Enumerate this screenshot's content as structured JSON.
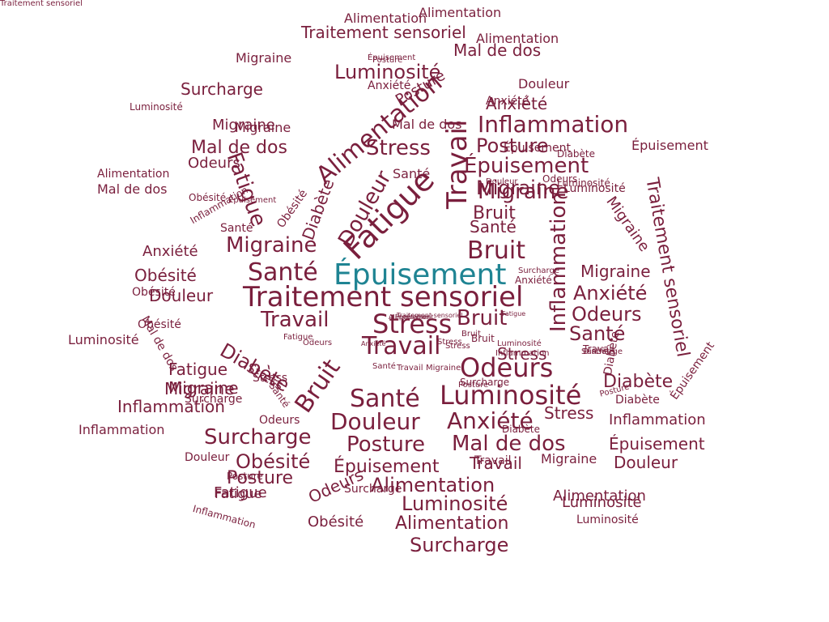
{
  "colors": {
    "word": "#7a1f3d",
    "highlight": "#1f8493",
    "background": "#ffffff"
  },
  "words": [
    "Épuisement",
    "Traitement sensoriel",
    "Travail",
    "Fatigue",
    "Stress",
    "Travail",
    "Alimentation",
    "Odeurs",
    "Luminosité",
    "Migraine",
    "Inflammation",
    "Santé",
    "Douleur",
    "Bruit",
    "Posture",
    "Bruit",
    "Santé",
    "Bruit",
    "Diabète",
    "Douleur",
    "Anxiété",
    "Stress",
    "Épuisement",
    "Luminosité",
    "Fatigue",
    "Inflammation",
    "Migraine",
    "Surcharge",
    "Traitement sensoriel",
    "Mal de dos",
    "Alimentation",
    "Surcharge",
    "Obésité",
    "Santé",
    "Migraine",
    "Odeurs",
    "Anxiété",
    "Posture",
    "Épuisement",
    "Posture",
    "Alimentation",
    "Travail",
    "Luminosité",
    "Bruit",
    "Diabète",
    "Mal de dos",
    "Traitement sensoriel",
    "Épuisement",
    "Diabète",
    "Stress",
    "Migraine",
    "Travail",
    "Santé",
    "Douleur",
    "Obésité",
    "Anxiété",
    "Luminosité",
    "Stress",
    "Migraine",
    "Alimentation",
    "Odeurs",
    "Surcharge",
    "Douleur",
    "Migraine",
    "Migraine",
    "Odeurs",
    "Mal de dos",
    "Anxiété",
    "Surcharge",
    "Posture",
    "Migraine",
    "Inflammation",
    "Alimentation",
    "Mal de dos",
    "Obésité",
    "Luminosité",
    "Surcharge",
    "Fatigue",
    "Migraine",
    "Inflammation",
    "Fatigue",
    "Stress",
    "Diabète",
    "Luminosité",
    "Épuisement",
    "Inflammation",
    "Alimentation",
    "Obésité",
    "Épuisement",
    "Luminosité",
    "Travail",
    "Douleur",
    "Migraine",
    "Douleur",
    "Obésité",
    "Stress",
    "Fatigue",
    "Posture",
    "Odeurs",
    "Santé",
    "Santé",
    "Diabète",
    "Mal de dos",
    "Anxiété",
    "Inflammation",
    "Alimentation",
    "Épuisement",
    "Migraine",
    "Luminosité",
    "Santé",
    "Anxiété",
    "Obésité",
    "Travail",
    "Douleur",
    "Diabète",
    "Épuisement",
    "Surcharge",
    "Inflammation",
    "Anxiété",
    "Posture",
    "Luminosité",
    "Alimentation",
    "Mal de dos",
    "Odeurs",
    "Fatigue",
    "Obésité",
    "Épuisement",
    "Bruit",
    "Diabète",
    "Stress",
    "Surcharge",
    "Travail",
    "Migraine",
    "Odeurs",
    "Traitement sensoriel",
    "Luminosité",
    "Inflammation",
    "Posture",
    "Anxiété",
    "Bruit",
    "Santé",
    "Stress",
    "Alimentation",
    "Fatigue",
    "Diabète",
    "Surcharge",
    "Posture",
    "Épuisement",
    "Traitement sensoriel"
  ]
}
